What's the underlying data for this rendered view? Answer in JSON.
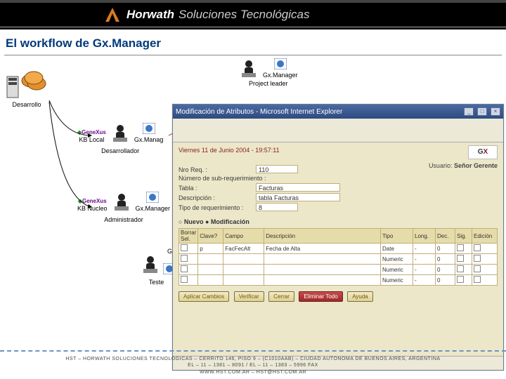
{
  "header": {
    "brand1": "Horwath",
    "brand2": "Soluciones Tecnológicas"
  },
  "title": "El workflow de Gx.Manager",
  "roles": {
    "desarrollo": "Desarrollo",
    "kb_local": "KB Local",
    "gxmanager_small": "Gx.Manag",
    "desarrollador": "Desarrollador",
    "kb_nucleo": "KB Nucleo",
    "gxmanager_full": "Gx.Manager",
    "administrador": "Administrador",
    "tester": "Teste",
    "project_leader": "Project leader",
    "gxmanager_right": "Gx.Manager",
    "genexus_badge": "GeneXus"
  },
  "dialog": {
    "window_title": "Modificación de Atributos - Microsoft Internet Explorer",
    "date": "Viernes 11 de Junio 2004 - 19:57:11",
    "user_label": "Usuario:",
    "user_value": "Señor Gerente",
    "fields": {
      "nroreq_lbl": "Nro Req. :",
      "nroreq_val": "110",
      "nrosub_lbl": "Número de sub-requerimiento :",
      "tabla_lbl": "Tabla :",
      "tabla_val": "Facturas",
      "desc_lbl": "Descripción :",
      "desc_val": "tabla Facturas",
      "tipo_lbl": "Tipo de requerimiento :",
      "tipo_val": "8"
    },
    "subheading": "○ Nuevo ● Modificación",
    "grid": {
      "headers": [
        "Borrar Sel.",
        "Clave?",
        "Campo",
        "Descripción",
        "Tipo",
        "Long.",
        "Dec.",
        "Sig.",
        "Edición"
      ],
      "rows": [
        {
          "clave": "p",
          "campo": "FacFecAlt",
          "desc": "Fecha de Alta",
          "tipo": "Date",
          "long": "-",
          "dec": "0",
          "sig": "",
          "ed": ""
        },
        {
          "clave": "",
          "campo": "",
          "desc": "",
          "tipo": "Numeric",
          "long": "-",
          "dec": "0",
          "sig": "",
          "ed": ""
        },
        {
          "clave": "",
          "campo": "",
          "desc": "",
          "tipo": "Numeric",
          "long": "-",
          "dec": "0",
          "sig": "",
          "ed": ""
        },
        {
          "clave": "",
          "campo": "",
          "desc": "",
          "tipo": "Numeric",
          "long": "-",
          "dec": "0",
          "sig": "",
          "ed": ""
        }
      ]
    },
    "buttons": {
      "aplicar": "Aplicar Cambios",
      "verificar": "Verificar",
      "cerrar": "Cerrar",
      "eliminar": "Eliminar Todo",
      "ayuda": "Ayuda"
    }
  },
  "footer": {
    "line1": "HST – HORWATH SOLUCIONES TECNOLOGICAS – CERRITO 146, PISO 9 – (C1010AAB) – CIUDAD AUTONOMA DE BUENOS AIRES, ARGENTINA",
    "line2": "EL – 11 – 1381 – 8091 / EL – 11 – 1383 – 5996 FAX",
    "line3": "WWW.HST.COM.AR – HST@HST.COM.AR"
  },
  "colors": {
    "brand_orange": "#d97b1e",
    "title_blue": "#003a7a",
    "ie_title": "#2e4b80",
    "dlg_bg": "#ece7c9"
  }
}
